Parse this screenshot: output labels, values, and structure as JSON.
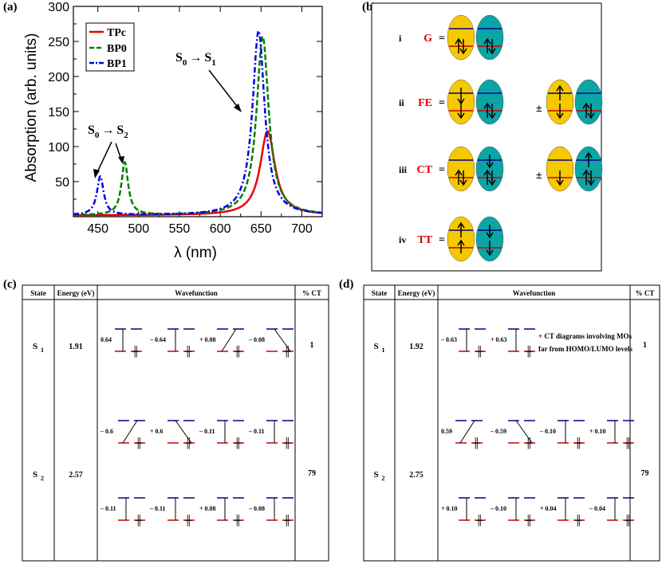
{
  "panels": {
    "a": "(a)",
    "b": "(b)",
    "c": "(c)",
    "d": "(d)"
  },
  "chart_data": {
    "type": "line",
    "title": "",
    "xlabel": "λ (nm)",
    "ylabel": "Absorption (arb. units)",
    "xlim": [
      420,
      725
    ],
    "ylim": [
      0,
      300
    ],
    "xticks": [
      450,
      500,
      550,
      600,
      650,
      700
    ],
    "yticks": [
      50,
      100,
      150,
      200,
      250,
      300
    ],
    "legend": [
      "TPc",
      "BP0",
      "BP1"
    ],
    "series": [
      {
        "name": "TPc",
        "color": "#ee0000",
        "style": "solid",
        "peaks": [
          {
            "x": 658,
            "y": 120,
            "w": 11
          }
        ],
        "baseline": 2
      },
      {
        "name": "BP0",
        "color": "#008000",
        "style": "dash",
        "peaks": [
          {
            "x": 652,
            "y": 255,
            "w": 9
          },
          {
            "x": 483,
            "y": 75,
            "w": 5
          }
        ],
        "baseline": 2
      },
      {
        "name": "BP1",
        "color": "#0000ee",
        "style": "dashdot",
        "peaks": [
          {
            "x": 647,
            "y": 263,
            "w": 9
          },
          {
            "x": 453,
            "y": 55,
            "w": 5
          }
        ],
        "baseline": 2
      }
    ],
    "annotations": [
      {
        "text": "S0 → S1",
        "sub": [
          "0",
          "1"
        ],
        "main": "S",
        "arrow": "→"
      },
      {
        "text": "S0 → S2",
        "sub": [
          "0",
          "2"
        ],
        "main": "S",
        "arrow": "→"
      }
    ]
  },
  "panel_b": {
    "rows": [
      {
        "roman": "i",
        "label": "G",
        "sign": "="
      },
      {
        "roman": "ii",
        "label": "FE",
        "sign": "=",
        "op": "±"
      },
      {
        "roman": "iii",
        "label": "CT",
        "sign": "=",
        "op": "±"
      },
      {
        "roman": "iv",
        "label": "TT",
        "sign": "="
      }
    ],
    "colors": {
      "left": "#f5c800",
      "right": "#0aa5a5",
      "label": "#dd0000"
    }
  },
  "table_c": {
    "headers": [
      "State",
      "Energy (eV)",
      "Wavefunction",
      "% CT"
    ],
    "rows": [
      {
        "state_main": "S",
        "state_sub": "1",
        "energy": "1.91",
        "ct": "1",
        "coefs": [
          "0.64",
          "– 0.64",
          "+ 0.08",
          "– 0.08"
        ]
      },
      {
        "state_main": "S",
        "state_sub": "2",
        "energy": "2.57",
        "ct": "79",
        "coefs_top": [
          "– 0.6",
          "+ 0.6",
          "– 0.11",
          "– 0.11"
        ],
        "coefs_bottom": [
          "– 0.11",
          "– 0.11",
          "+ 0.08",
          "– 0.08"
        ]
      }
    ]
  },
  "table_d": {
    "headers": [
      "State",
      "Energy (eV)",
      "Wavefunction",
      "% CT"
    ],
    "rows": [
      {
        "state_main": "S",
        "state_sub": "1",
        "energy": "1.92",
        "ct": "1",
        "coefs": [
          "– 0.63",
          "+ 0.63"
        ],
        "note": [
          "+ CT diagrams involving MOs",
          "far from HOMO/LUMO levels"
        ]
      },
      {
        "state_main": "S",
        "state_sub": "2",
        "energy": "2.75",
        "ct": "79",
        "coefs_top": [
          "0.59",
          "– 0.59",
          "– 0.10",
          "+ 0.10"
        ],
        "coefs_bottom": [
          "+ 0.10",
          "– 0.10",
          "+ 0.04",
          "– 0.04"
        ]
      }
    ]
  }
}
